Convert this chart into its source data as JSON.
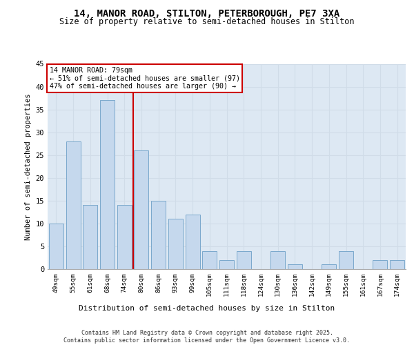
{
  "title_line1": "14, MANOR ROAD, STILTON, PETERBOROUGH, PE7 3XA",
  "title_line2": "Size of property relative to semi-detached houses in Stilton",
  "xlabel": "Distribution of semi-detached houses by size in Stilton",
  "ylabel": "Number of semi-detached properties",
  "categories": [
    "49sqm",
    "55sqm",
    "61sqm",
    "68sqm",
    "74sqm",
    "80sqm",
    "86sqm",
    "93sqm",
    "99sqm",
    "105sqm",
    "111sqm",
    "118sqm",
    "124sqm",
    "130sqm",
    "136sqm",
    "142sqm",
    "149sqm",
    "155sqm",
    "161sqm",
    "167sqm",
    "174sqm"
  ],
  "values": [
    10,
    28,
    14,
    37,
    14,
    26,
    15,
    11,
    12,
    4,
    2,
    4,
    0,
    4,
    1,
    0,
    1,
    4,
    0,
    2,
    2
  ],
  "bar_color": "#c5d8ed",
  "bar_edge_color": "#7aa8cc",
  "grid_color": "#d0dce8",
  "background_color": "#dde8f3",
  "ref_line_x": 4.5,
  "ref_line_color": "#cc0000",
  "annotation_text": "14 MANOR ROAD: 79sqm\n← 51% of semi-detached houses are smaller (97)\n47% of semi-detached houses are larger (90) →",
  "annotation_box_color": "#cc0000",
  "ylim": [
    0,
    45
  ],
  "yticks": [
    0,
    5,
    10,
    15,
    20,
    25,
    30,
    35,
    40,
    45
  ],
  "footer_line1": "Contains HM Land Registry data © Crown copyright and database right 2025.",
  "footer_line2": "Contains public sector information licensed under the Open Government Licence v3.0."
}
